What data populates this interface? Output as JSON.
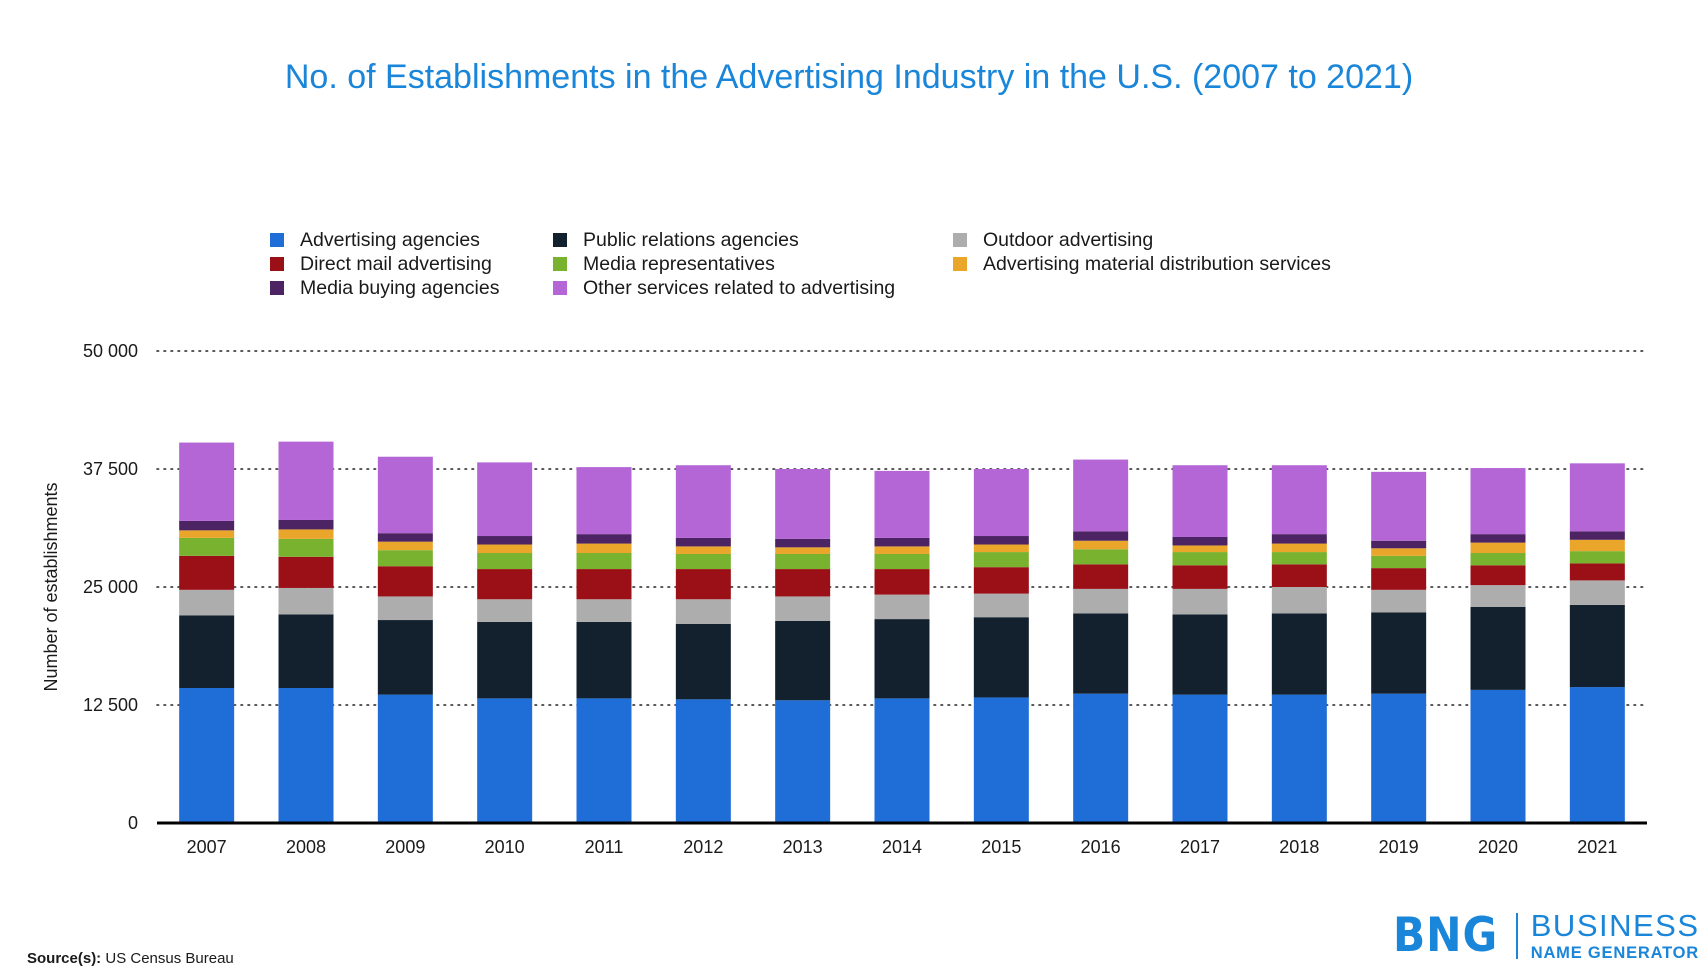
{
  "chart_data": {
    "type": "bar",
    "stacked": true,
    "title": "No. of Establishments in the Advertising Industry in the U.S. (2007 to 2021)",
    "xlabel": "",
    "ylabel": "Number of establishments",
    "ylim": [
      0,
      50000
    ],
    "yticks": [
      0,
      12500,
      25000,
      37500,
      50000
    ],
    "ytick_labels": [
      "0",
      "12 500",
      "25 000",
      "37 500",
      "50 000"
    ],
    "grid": "dotted horizontal",
    "legend_position": "top",
    "categories": [
      "2007",
      "2008",
      "2009",
      "2010",
      "2011",
      "2012",
      "2013",
      "2014",
      "2015",
      "2016",
      "2017",
      "2018",
      "2019",
      "2020",
      "2021"
    ],
    "series": [
      {
        "name": "Advertising agencies",
        "color": "#1f6ed8",
        "values": [
          14300,
          14300,
          13600,
          13200,
          13200,
          13100,
          13000,
          13200,
          13300,
          13700,
          13600,
          13600,
          13700,
          14100,
          14400
        ]
      },
      {
        "name": "Public relations agencies",
        "color": "#13212f",
        "values": [
          7700,
          7800,
          7900,
          8100,
          8100,
          8000,
          8400,
          8400,
          8500,
          8500,
          8500,
          8600,
          8600,
          8800,
          8700
        ]
      },
      {
        "name": "Outdoor advertising",
        "color": "#adadad",
        "values": [
          2700,
          2800,
          2500,
          2400,
          2400,
          2600,
          2600,
          2600,
          2500,
          2600,
          2700,
          2800,
          2400,
          2300,
          2600
        ]
      },
      {
        "name": "Direct mail advertising",
        "color": "#9b0f17",
        "values": [
          3600,
          3300,
          3200,
          3200,
          3200,
          3200,
          2900,
          2700,
          2800,
          2600,
          2500,
          2400,
          2300,
          2100,
          1800
        ]
      },
      {
        "name": "Media representatives",
        "color": "#78b22f",
        "values": [
          1900,
          1900,
          1700,
          1700,
          1700,
          1600,
          1600,
          1600,
          1600,
          1600,
          1400,
          1300,
          1300,
          1300,
          1300
        ]
      },
      {
        "name": "Advertising material distribution services",
        "color": "#eaa52b",
        "values": [
          800,
          1000,
          900,
          900,
          1000,
          800,
          700,
          800,
          800,
          900,
          700,
          900,
          800,
          1100,
          1200
        ]
      },
      {
        "name": "Media buying agencies",
        "color": "#4d2463",
        "values": [
          1000,
          1000,
          900,
          900,
          1000,
          900,
          900,
          900,
          900,
          1000,
          900,
          1000,
          800,
          900,
          900
        ]
      },
      {
        "name": "Other services related to advertising",
        "color": "#b466d6",
        "values": [
          8300,
          8300,
          8100,
          7800,
          7100,
          7700,
          7400,
          7100,
          7100,
          7600,
          7600,
          7300,
          7300,
          7000,
          7200
        ]
      }
    ]
  },
  "source": {
    "label": "Source(s):",
    "text": "US Census Bureau"
  },
  "logo": {
    "mark": "BNG",
    "line1": "BUSINESS",
    "line2": "NAME GENERATOR"
  },
  "colors": {
    "title": "#1a86d9",
    "brand": "#1a86d9"
  }
}
